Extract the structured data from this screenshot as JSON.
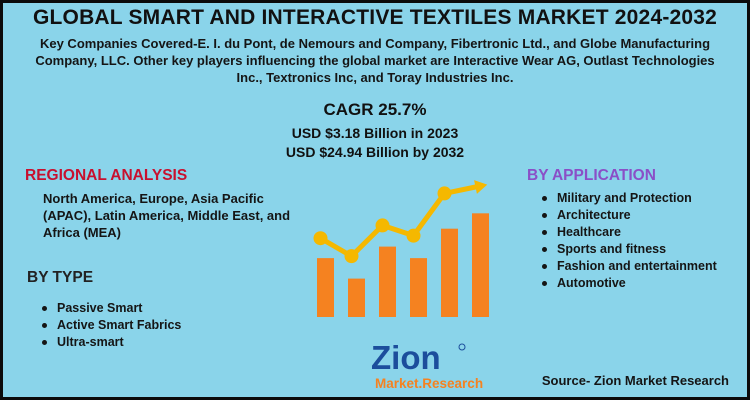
{
  "title": "GLOBAL SMART AND INTERACTIVE TEXTILES MARKET 2024-2032",
  "intro": "Key Companies Covered-E. I. du Pont, de Nemours and Company, Fibertronic Ltd., and Globe Manufacturing Company, LLC. Other key players influencing the global market are Interactive Wear AG, Outlast Technologies Inc., Textronics Inc, and Toray Industries Inc.",
  "cagr": {
    "rate": "CAGR 25.7%",
    "value_2023": "USD $3.18 Billion in 2023",
    "value_2032": "USD $24.94 Billion by 2032"
  },
  "regional": {
    "heading": "REGIONAL ANALYSIS",
    "text": "North America, Europe, Asia Pacific (APAC), Latin America, Middle East, and Africa (MEA)"
  },
  "by_type": {
    "heading": "BY TYPE",
    "items": [
      "Passive Smart",
      "Active Smart Fabrics",
      "Ultra-smart"
    ]
  },
  "by_application": {
    "heading": "BY APPLICATION",
    "items": [
      "Military and Protection",
      "Architecture",
      "Healthcare",
      "Sports and fitness",
      "Fashion and entertainment",
      "Automotive"
    ]
  },
  "logo": {
    "name": "Zion",
    "sub": "Market.Research"
  },
  "source": "Source- Zion Market Research",
  "colors": {
    "background": "#8ad4ea",
    "bar": "#f58220",
    "trend_line": "#f5b800",
    "region_heading": "#c8102e",
    "application_heading": "#8a4fc7",
    "logo_blue": "#1c4e9c"
  },
  "chart_data": {
    "type": "bar",
    "bars": [
      0.46,
      0.3,
      0.55,
      0.46,
      0.69,
      0.81
    ],
    "trend": [
      0.6,
      0.46,
      0.7,
      0.62,
      0.95,
      1.0
    ]
  }
}
